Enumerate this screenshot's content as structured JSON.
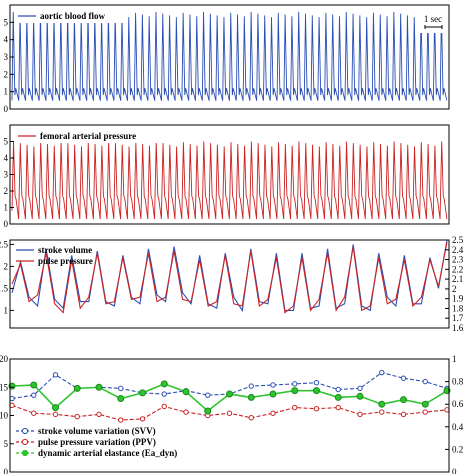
{
  "chart_data": [
    {
      "type": "line",
      "panel": "aortic-blood-flow",
      "series": [
        {
          "name": "aortic blood flow",
          "color": "#2b4fb5",
          "beats": 64,
          "y_trough": 0.5,
          "y_peak": 5.6
        }
      ],
      "annotation": "1 sec",
      "ylim": [
        0,
        6
      ],
      "yticks": [
        "0",
        "1",
        "2",
        "3",
        "4",
        "5"
      ],
      "legend_position": "top-left"
    },
    {
      "type": "line",
      "panel": "femoral-arterial-pressure",
      "series": [
        {
          "name": "femoral arterial pressure",
          "color": "#cc2222",
          "beats": 64,
          "y_trough": 0.3,
          "y_peak": 5.0
        }
      ],
      "ylim": [
        0,
        6
      ],
      "yticks": [
        "0",
        "1",
        "2",
        "3",
        "4",
        "5"
      ],
      "legend_position": "top-left"
    },
    {
      "type": "line",
      "panel": "stroke-volume-and-pulse-pressure",
      "legend_position": "top-left",
      "ylim": [
        0.6,
        2.6
      ],
      "ylim_right": [
        1.6,
        2.5
      ],
      "yticks": [
        "1",
        "1.5",
        "2",
        "2.5"
      ],
      "yticks_right": [
        "1.6",
        "1.7",
        "1.8",
        "1.9",
        "2",
        "2.1",
        "2.2",
        "2.3",
        "2.4",
        "2.5"
      ],
      "x": [
        0,
        0.5,
        1,
        1.5,
        2,
        2.5,
        3,
        3.5,
        4,
        4.5,
        5,
        5.5,
        6,
        6.5,
        7,
        7.5,
        8,
        8.5,
        9,
        9.5,
        10,
        10.5,
        11,
        11.5,
        12,
        12.5,
        13,
        13.5,
        14,
        14.5,
        15,
        15.5,
        16,
        16.5,
        17,
        17.5,
        18,
        18.5,
        19,
        19.5,
        20,
        20.5,
        21,
        21.5,
        22,
        22.5,
        23,
        23.5,
        24,
        24.5,
        25,
        25.5
      ],
      "series": [
        {
          "name": "stroke volume",
          "color": "#2b4fb5",
          "values": [
            1.4,
            2.1,
            1.3,
            1.1,
            2.4,
            1.25,
            1.05,
            2.25,
            1.2,
            1.2,
            2.35,
            1.2,
            1.1,
            2.25,
            1.3,
            1.15,
            2.4,
            1.35,
            1.2,
            2.45,
            1.4,
            1.15,
            2.25,
            1.15,
            1.05,
            2.3,
            1.3,
            1.0,
            2.4,
            1.2,
            1.15,
            2.3,
            1.0,
            1.0,
            2.3,
            1.05,
            1.1,
            2.4,
            1.05,
            1.15,
            2.5,
            1.1,
            1.0,
            2.3,
            1.3,
            1.1,
            2.25,
            1.15,
            1.15,
            2.2,
            1.5,
            2.6
          ]
        },
        {
          "name": "pulse pressure",
          "color": "#cc2222",
          "values": [
            1.6,
            2.05,
            1.2,
            1.35,
            2.3,
            1.15,
            0.95,
            2.15,
            1.05,
            1.3,
            2.3,
            1.15,
            1.2,
            2.2,
            1.25,
            1.3,
            2.3,
            1.2,
            1.3,
            2.35,
            1.25,
            1.2,
            2.15,
            1.1,
            1.2,
            2.25,
            1.15,
            1.1,
            2.35,
            1.1,
            1.25,
            2.2,
            0.95,
            1.1,
            2.2,
            1.0,
            1.25,
            2.3,
            1.0,
            1.3,
            2.45,
            1.0,
            1.1,
            2.2,
            1.15,
            1.25,
            2.15,
            1.1,
            1.3,
            2.15,
            1.55,
            2.55
          ]
        }
      ]
    },
    {
      "type": "line",
      "panel": "dynamic-variation",
      "legend_position": "bottom-left",
      "ylim": [
        0,
        20
      ],
      "ylim_right": [
        0,
        1
      ],
      "yticks": [
        "0",
        "5",
        "10",
        "15",
        "20"
      ],
      "yticks_right": [
        "0",
        "0.2",
        "0.4",
        "0.6",
        "0.8",
        "1"
      ],
      "x": [
        0,
        1,
        2,
        3,
        4,
        5,
        6,
        7,
        8,
        9,
        10,
        11,
        12,
        13,
        14,
        15,
        16,
        17,
        18,
        19,
        20
      ],
      "series": [
        {
          "name": "stroke volume variation (SVV)",
          "color": "#2b4fb5",
          "values": [
            13,
            13.6,
            17.2,
            14.8,
            15.0,
            14.8,
            14.0,
            13.8,
            14.4,
            13.6,
            13.8,
            15.2,
            15.4,
            15.6,
            15.8,
            14.6,
            14.8,
            17.6,
            16.6,
            16.0,
            14.8
          ]
        },
        {
          "name": "pulse pressure variation (PPV)",
          "color": "#cc2222",
          "values": [
            11.8,
            10.4,
            10.2,
            9.8,
            10.2,
            9.2,
            9.4,
            11.6,
            10.6,
            10.0,
            10.4,
            9.6,
            10.4,
            11.4,
            11.2,
            11.4,
            10.2,
            10.6,
            10.2,
            10.6,
            11.0
          ]
        },
        {
          "name": "dynamic arterial elastance (Ea_dyn)",
          "color": "#2fc42f",
          "right_axis": true,
          "values": [
            0.76,
            0.77,
            0.57,
            0.74,
            0.75,
            0.65,
            0.7,
            0.78,
            0.71,
            0.54,
            0.69,
            0.66,
            0.69,
            0.72,
            0.72,
            0.66,
            0.67,
            0.6,
            0.64,
            0.6,
            0.72
          ]
        }
      ]
    }
  ]
}
